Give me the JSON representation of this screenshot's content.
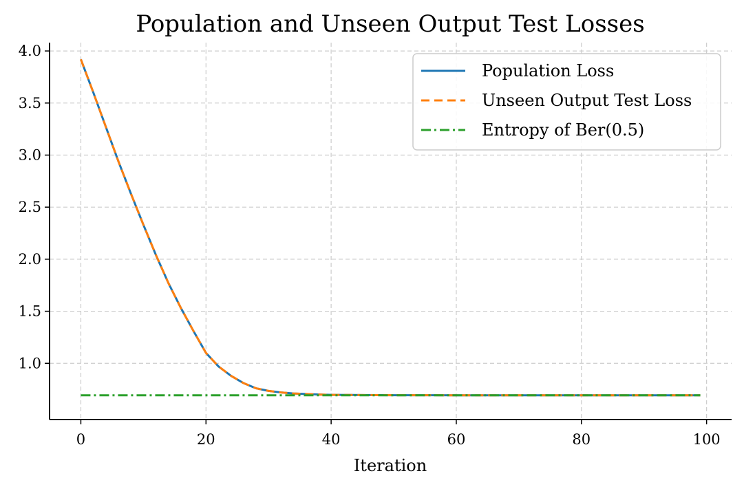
{
  "chart_data": {
    "type": "line",
    "title": "Population and Unseen Output Test Losses",
    "xlabel": "Iteration",
    "ylabel": "",
    "xlim": [
      -5,
      104
    ],
    "ylim": [
      0.46,
      4.08
    ],
    "xticks": [
      0,
      20,
      40,
      60,
      80,
      100
    ],
    "yticks": [
      1.0,
      1.5,
      2.0,
      2.5,
      3.0,
      3.5,
      4.0
    ],
    "xtick_labels": [
      "0",
      "20",
      "40",
      "60",
      "80",
      "100"
    ],
    "ytick_labels": [
      "1.0",
      "1.5",
      "2.0",
      "2.5",
      "3.0",
      "3.5",
      "4.0"
    ],
    "grid": true,
    "legend_position": "top-right",
    "x": [
      0,
      2,
      4,
      6,
      8,
      10,
      12,
      14,
      16,
      18,
      20,
      22,
      24,
      26,
      28,
      30,
      32,
      34,
      36,
      38,
      40,
      45,
      50,
      60,
      70,
      80,
      90,
      99
    ],
    "series": [
      {
        "name": "Population Loss",
        "color": "#1f77b4",
        "style": "solid",
        "values": [
          3.92,
          3.6,
          3.27,
          2.94,
          2.63,
          2.33,
          2.04,
          1.77,
          1.53,
          1.31,
          1.1,
          0.97,
          0.88,
          0.81,
          0.76,
          0.735,
          0.72,
          0.71,
          0.705,
          0.7,
          0.697,
          0.695,
          0.694,
          0.693,
          0.693,
          0.693,
          0.693,
          0.693
        ]
      },
      {
        "name": "Unseen Output Test Loss",
        "color": "#ff7f0e",
        "style": "dashed",
        "values": [
          3.92,
          3.6,
          3.27,
          2.94,
          2.63,
          2.33,
          2.04,
          1.77,
          1.53,
          1.31,
          1.1,
          0.97,
          0.88,
          0.81,
          0.76,
          0.735,
          0.72,
          0.71,
          0.705,
          0.7,
          0.697,
          0.695,
          0.694,
          0.693,
          0.693,
          0.693,
          0.693,
          0.693
        ]
      },
      {
        "name": "Entropy of Ber(0.5)",
        "color": "#2ca02c",
        "style": "dashdot",
        "values": [
          0.693,
          0.693,
          0.693,
          0.693,
          0.693,
          0.693,
          0.693,
          0.693,
          0.693,
          0.693,
          0.693,
          0.693,
          0.693,
          0.693,
          0.693,
          0.693,
          0.693,
          0.693,
          0.693,
          0.693,
          0.693,
          0.693,
          0.693,
          0.693,
          0.693,
          0.693,
          0.693,
          0.693
        ]
      }
    ]
  }
}
